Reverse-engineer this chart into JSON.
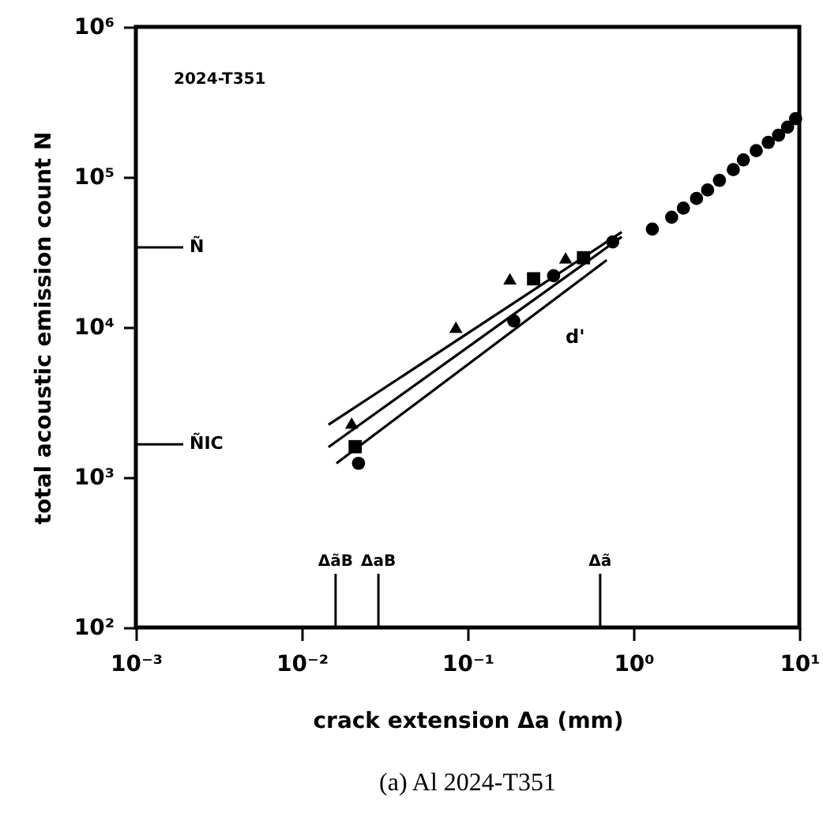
{
  "chart_data": {
    "type": "scatter",
    "xlabel": "crack extension   Δa (mm)",
    "ylabel": "total acoustic emission count  N",
    "log": "xy",
    "grid": false,
    "xlim": [
      0.001,
      10
    ],
    "ylim": [
      100,
      1000000
    ],
    "xticks": [
      {
        "value": 0.001,
        "label": "10⁻³"
      },
      {
        "value": 0.01,
        "label": "10⁻²"
      },
      {
        "value": 0.1,
        "label": "10⁻¹"
      },
      {
        "value": 1,
        "label": "10⁰"
      },
      {
        "value": 10,
        "label": "10¹"
      }
    ],
    "yticks": [
      {
        "value": 100,
        "label": "10²"
      },
      {
        "value": 1000,
        "label": "10³"
      },
      {
        "value": 10000,
        "label": "10⁴"
      },
      {
        "value": 100000,
        "label": "10⁵"
      },
      {
        "value": 1000000,
        "label": "10⁶"
      }
    ],
    "series": [
      {
        "marker": "triangle",
        "color": "#000000",
        "x": [
          0.02,
          0.085,
          0.18,
          0.39
        ],
        "values": [
          2300,
          10000,
          21000,
          29000
        ]
      },
      {
        "marker": "square",
        "color": "#000000",
        "x": [
          0.021,
          0.25,
          0.5
        ],
        "values": [
          1600,
          21000,
          29000
        ]
      },
      {
        "marker": "circle",
        "color": "#000000",
        "x": [
          0.022,
          0.19,
          0.33,
          0.75,
          1.3,
          1.7,
          2.0,
          2.4,
          2.8,
          3.3,
          4.0,
          4.6,
          5.5,
          6.5,
          7.5,
          8.5,
          9.5
        ],
        "values": [
          1240,
          11000,
          22000,
          37000,
          45000,
          54000,
          62000,
          72000,
          82000,
          95000,
          112000,
          130000,
          150000,
          170000,
          190000,
          215000,
          245000
        ]
      },
      {
        "type": "line",
        "color": "#000000",
        "x": [
          0.0145,
          0.85
        ],
        "values": [
          2240,
          43000
        ]
      },
      {
        "type": "line",
        "color": "#000000",
        "x": [
          0.0145,
          0.85
        ],
        "values": [
          1590,
          40000
        ]
      },
      {
        "type": "line",
        "color": "#000000",
        "x": [
          0.0162,
          0.69
        ],
        "values": [
          1240,
          28000
        ]
      }
    ],
    "ref_lines": [
      {
        "axis": "y",
        "value": 34000,
        "label": "Ñ"
      },
      {
        "axis": "y",
        "value": 1660,
        "label": "ÑIC"
      },
      {
        "axis": "x",
        "value": 0.016,
        "label": "ΔãB"
      },
      {
        "axis": "x",
        "value": 0.029,
        "label": "ΔaB"
      },
      {
        "axis": "x",
        "value": 0.63,
        "label": "Δã"
      }
    ],
    "annotations": [
      "2024-T351",
      "(a) Al 2024-T351",
      "d'"
    ]
  }
}
